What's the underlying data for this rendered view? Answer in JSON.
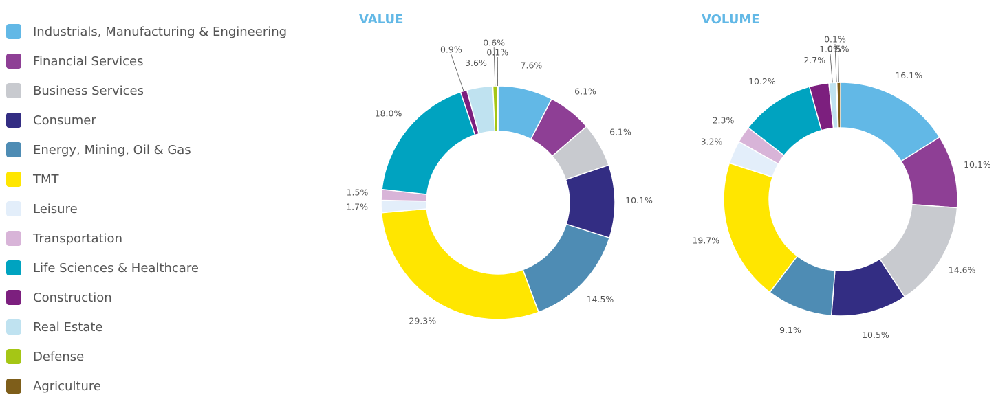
{
  "categories": [
    "Industrials, Manufacturing & Engineering",
    "Financial Services",
    "Business Services",
    "Consumer",
    "Energy, Mining, Oil & Gas",
    "TMT",
    "Leisure",
    "Transportation",
    "Life Sciences & Healthcare",
    "Construction",
    "Real Estate",
    "Defense",
    "Agriculture"
  ],
  "colors": [
    "#62b8e6",
    "#8e3f95",
    "#c8cacf",
    "#332d83",
    "#4e8cb4",
    "#ffe600",
    "#e3eefa",
    "#d8b4d8",
    "#00a3c0",
    "#7c1f7e",
    "#bfe2f0",
    "#a5c615",
    "#7e5e1a"
  ],
  "chart_data": [
    {
      "type": "pie",
      "title": "VALUE",
      "values": [
        7.6,
        6.1,
        6.1,
        10.1,
        14.5,
        29.3,
        1.7,
        1.5,
        18.0,
        0.9,
        3.6,
        0.6,
        0.1
      ],
      "value_labels": [
        "7.6%",
        "6.1%",
        "6.1%",
        "10.1%",
        "14.5%",
        "29.3%",
        "1.7%",
        "1.5%",
        "18.0%",
        "0.9%",
        "3.6%",
        "0.6%",
        "0.1%"
      ]
    },
    {
      "type": "pie",
      "title": "VOLUME",
      "values": [
        16.1,
        10.1,
        14.6,
        10.5,
        9.1,
        19.7,
        3.2,
        2.3,
        10.2,
        2.7,
        1.0,
        0.1,
        0.5
      ],
      "value_labels": [
        "16.1%",
        "10.1%",
        "14.6%",
        "10.5%",
        "9.1%",
        "19.7%",
        "3.2%",
        "2.3%",
        "10.2%",
        "2.7%",
        "1.0%",
        "0.1%",
        "0.5%"
      ]
    }
  ]
}
